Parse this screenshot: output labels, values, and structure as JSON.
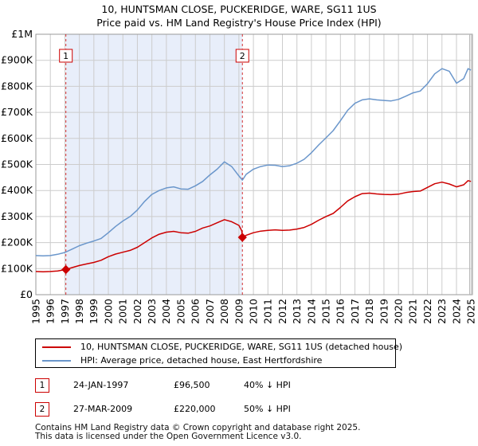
{
  "chart_data": {
    "type": "line",
    "title": "10, HUNTSMAN CLOSE, PUCKERIDGE, WARE, SG11 1US",
    "subtitle": "Price paid vs. HM Land Registry's House Price Index (HPI)",
    "xlabel": "",
    "ylabel": "",
    "xlim": [
      1995.0,
      2025.1
    ],
    "ylim": [
      0,
      1000000
    ],
    "x_ticks": [
      1995,
      1996,
      1997,
      1998,
      1999,
      2000,
      2001,
      2002,
      2003,
      2004,
      2005,
      2006,
      2007,
      2008,
      2009,
      2010,
      2011,
      2012,
      2013,
      2014,
      2015,
      2016,
      2017,
      2018,
      2019,
      2020,
      2021,
      2022,
      2023,
      2024,
      2025
    ],
    "y_ticks": [
      {
        "value": 0,
        "label": "£0"
      },
      {
        "value": 100000,
        "label": "£100K"
      },
      {
        "value": 200000,
        "label": "£200K"
      },
      {
        "value": 300000,
        "label": "£300K"
      },
      {
        "value": 400000,
        "label": "£400K"
      },
      {
        "value": 500000,
        "label": "£500K"
      },
      {
        "value": 600000,
        "label": "£600K"
      },
      {
        "value": 700000,
        "label": "£700K"
      },
      {
        "value": 800000,
        "label": "£800K"
      },
      {
        "value": 900000,
        "label": "£900K"
      },
      {
        "value": 1000000,
        "label": "£1M"
      }
    ],
    "grid": true,
    "legend_position": "below",
    "shaded_period": [
      1997.07,
      2009.24
    ],
    "series": [
      {
        "name": "10, HUNTSMAN CLOSE, PUCKERIDGE, WARE, SG11 1US (detached house)",
        "color": "#cc0000",
        "x": [
          1995.0,
          1995.5,
          1996.0,
          1996.5,
          1997.07,
          1997.5,
          1998.0,
          1998.5,
          1999.0,
          1999.5,
          2000.0,
          2000.5,
          2001.0,
          2001.5,
          2002.0,
          2002.5,
          2003.0,
          2003.5,
          2004.0,
          2004.5,
          2005.0,
          2005.5,
          2006.0,
          2006.5,
          2007.0,
          2007.5,
          2008.0,
          2008.5,
          2009.0,
          2009.2,
          2009.24,
          2009.5,
          2010.0,
          2010.5,
          2011.0,
          2011.5,
          2012.0,
          2012.5,
          2013.0,
          2013.5,
          2014.0,
          2014.5,
          2015.0,
          2015.5,
          2016.0,
          2016.5,
          2017.0,
          2017.5,
          2018.0,
          2018.5,
          2019.0,
          2019.5,
          2020.0,
          2020.5,
          2021.0,
          2021.5,
          2022.0,
          2022.5,
          2023.0,
          2023.5,
          2024.0,
          2024.5,
          2024.8,
          2025.0
        ],
        "values": [
          89000,
          88000,
          89000,
          91000,
          96500,
          104000,
          112000,
          118000,
          124000,
          132000,
          146000,
          156000,
          163000,
          170000,
          182000,
          200000,
          218000,
          232000,
          240000,
          243000,
          238000,
          236000,
          243000,
          256000,
          264000,
          276000,
          288000,
          280000,
          266000,
          245000,
          220000,
          228000,
          238000,
          244000,
          247000,
          249000,
          247000,
          248000,
          252000,
          258000,
          270000,
          286000,
          300000,
          312000,
          335000,
          360000,
          376000,
          388000,
          390000,
          387000,
          385000,
          384000,
          386000,
          392000,
          396000,
          398000,
          412000,
          426000,
          432000,
          425000,
          414000,
          422000,
          438000,
          435000
        ]
      },
      {
        "name": "HPI: Average price, detached house, East Hertfordshire",
        "color": "#6a96cb",
        "x": [
          1995.0,
          1995.5,
          1996.0,
          1996.5,
          1997.0,
          1997.5,
          1998.0,
          1998.5,
          1999.0,
          1999.5,
          2000.0,
          2000.5,
          2001.0,
          2001.5,
          2002.0,
          2002.5,
          2003.0,
          2003.5,
          2004.0,
          2004.5,
          2005.0,
          2005.5,
          2006.0,
          2006.5,
          2007.0,
          2007.5,
          2008.0,
          2008.5,
          2009.0,
          2009.24,
          2009.5,
          2010.0,
          2010.5,
          2011.0,
          2011.5,
          2012.0,
          2012.5,
          2013.0,
          2013.5,
          2014.0,
          2014.5,
          2015.0,
          2015.5,
          2016.0,
          2016.5,
          2017.0,
          2017.5,
          2018.0,
          2018.5,
          2019.0,
          2019.5,
          2020.0,
          2020.5,
          2021.0,
          2021.5,
          2022.0,
          2022.5,
          2023.0,
          2023.5,
          2024.0,
          2024.5,
          2024.8,
          2025.0
        ],
        "values": [
          150000,
          149000,
          150000,
          155000,
          162000,
          175000,
          188000,
          198000,
          206000,
          216000,
          238000,
          262000,
          283000,
          300000,
          325000,
          358000,
          385000,
          400000,
          410000,
          414000,
          406000,
          405000,
          418000,
          435000,
          460000,
          482000,
          510000,
          492000,
          456000,
          440000,
          462000,
          482000,
          492000,
          498000,
          497000,
          492000,
          495000,
          505000,
          520000,
          545000,
          575000,
          602000,
          630000,
          668000,
          708000,
          735000,
          748000,
          752000,
          748000,
          746000,
          744000,
          750000,
          762000,
          775000,
          782000,
          810000,
          848000,
          868000,
          858000,
          812000,
          830000,
          868000,
          862000
        ]
      }
    ],
    "annotations": [
      {
        "label": "1",
        "x": 1997.07,
        "value": 96500
      },
      {
        "label": "2",
        "x": 2009.24,
        "value": 220000
      }
    ]
  },
  "legend": {
    "items": [
      {
        "label": "10, HUNTSMAN CLOSE, PUCKERIDGE, WARE, SG11 1US (detached house)",
        "color": "#cc0000"
      },
      {
        "label": "HPI: Average price, detached house, East Hertfordshire",
        "color": "#6a96cb"
      }
    ]
  },
  "transactions": [
    {
      "num": "1",
      "date": "24-JAN-1997",
      "price": "£96,500",
      "hpi": "40% ↓ HPI"
    },
    {
      "num": "2",
      "date": "27-MAR-2009",
      "price": "£220,000",
      "hpi": "50% ↓ HPI"
    }
  ],
  "footer": {
    "line1": "Contains HM Land Registry data © Crown copyright and database right 2025.",
    "line2": "This data is licensed under the Open Government Licence v3.0."
  },
  "colors": {
    "property_line": "#cc0000",
    "hpi_line": "#6a96cb",
    "shade": "#e8eefa",
    "grid": "#cccccc",
    "marker_line": "#cc0000"
  }
}
